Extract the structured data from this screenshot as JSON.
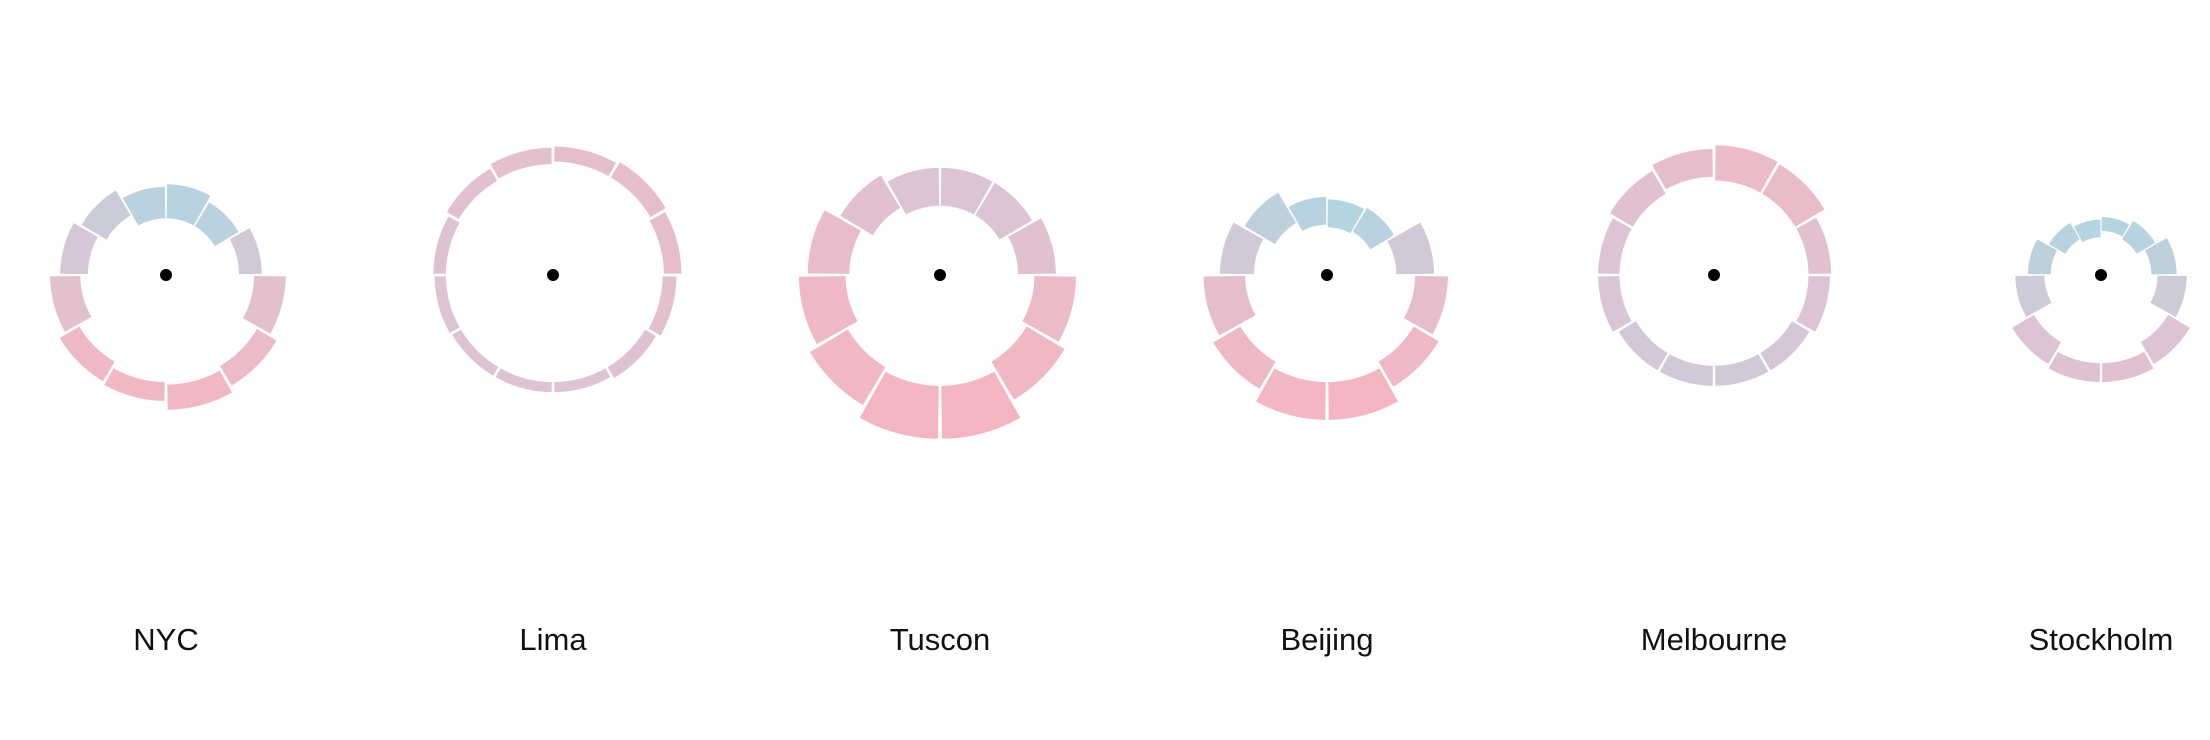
{
  "chart_data": {
    "type": "radial-bar",
    "title": "",
    "description_note": "",
    "colors": {
      "cold": "#b4d4e0",
      "mid": "#d9c6d6",
      "warm": "#f3b6c0",
      "center_dot": "#000000"
    },
    "cities": [
      {
        "name": "NYC",
        "segments": [
          {
            "inner": 0.45,
            "outer": 0.72,
            "warmth": 0.05
          },
          {
            "inner": 0.45,
            "outer": 0.67,
            "warmth": 0.1
          },
          {
            "inner": 0.58,
            "outer": 0.76,
            "warmth": 0.4
          },
          {
            "inner": 0.7,
            "outer": 0.95,
            "warmth": 0.7
          },
          {
            "inner": 0.84,
            "outer": 1.02,
            "warmth": 0.85
          },
          {
            "inner": 0.87,
            "outer": 1.07,
            "warmth": 0.95
          },
          {
            "inner": 0.85,
            "outer": 1.0,
            "warmth": 0.95
          },
          {
            "inner": 0.8,
            "outer": 0.98,
            "warmth": 0.9
          },
          {
            "inner": 0.68,
            "outer": 0.92,
            "warmth": 0.7
          },
          {
            "inner": 0.62,
            "outer": 0.84,
            "warmth": 0.45
          },
          {
            "inner": 0.55,
            "outer": 0.78,
            "warmth": 0.3
          },
          {
            "inner": 0.45,
            "outer": 0.7,
            "warmth": 0.1
          }
        ]
      },
      {
        "name": "Lima",
        "segments": [
          {
            "inner": 0.9,
            "outer": 1.02,
            "warmth": 0.75
          },
          {
            "inner": 0.9,
            "outer": 1.04,
            "warmth": 0.78
          },
          {
            "inner": 0.88,
            "outer": 1.02,
            "warmth": 0.75
          },
          {
            "inner": 0.87,
            "outer": 0.98,
            "warmth": 0.68
          },
          {
            "inner": 0.85,
            "outer": 0.95,
            "warmth": 0.62
          },
          {
            "inner": 0.85,
            "outer": 0.93,
            "warmth": 0.6
          },
          {
            "inner": 0.85,
            "outer": 0.93,
            "warmth": 0.6
          },
          {
            "inner": 0.85,
            "outer": 0.93,
            "warmth": 0.6
          },
          {
            "inner": 0.85,
            "outer": 0.94,
            "warmth": 0.6
          },
          {
            "inner": 0.85,
            "outer": 0.95,
            "warmth": 0.62
          },
          {
            "inner": 0.87,
            "outer": 0.98,
            "warmth": 0.66
          },
          {
            "inner": 0.88,
            "outer": 1.01,
            "warmth": 0.72
          }
        ]
      },
      {
        "name": "Tuscon",
        "segments": [
          {
            "inner": 0.55,
            "outer": 0.85,
            "warmth": 0.55
          },
          {
            "inner": 0.55,
            "outer": 0.85,
            "warmth": 0.55
          },
          {
            "inner": 0.62,
            "outer": 0.92,
            "warmth": 0.65
          },
          {
            "inner": 0.75,
            "outer": 1.08,
            "warmth": 0.85
          },
          {
            "inner": 0.8,
            "outer": 1.15,
            "warmth": 0.95
          },
          {
            "inner": 0.88,
            "outer": 1.3,
            "warmth": 1.0
          },
          {
            "inner": 0.88,
            "outer": 1.3,
            "warmth": 1.0
          },
          {
            "inner": 0.85,
            "outer": 1.2,
            "warmth": 0.95
          },
          {
            "inner": 0.75,
            "outer": 1.12,
            "warmth": 0.9
          },
          {
            "inner": 0.72,
            "outer": 1.05,
            "warmth": 0.8
          },
          {
            "inner": 0.62,
            "outer": 0.92,
            "warmth": 0.65
          },
          {
            "inner": 0.55,
            "outer": 0.85,
            "warmth": 0.55
          }
        ]
      },
      {
        "name": "Beijing",
        "segments": [
          {
            "inner": 0.38,
            "outer": 0.6,
            "warmth": 0.0
          },
          {
            "inner": 0.4,
            "outer": 0.62,
            "warmth": 0.05
          },
          {
            "inner": 0.55,
            "outer": 0.85,
            "warmth": 0.4
          },
          {
            "inner": 0.7,
            "outer": 0.96,
            "warmth": 0.75
          },
          {
            "inner": 0.8,
            "outer": 1.03,
            "warmth": 0.9
          },
          {
            "inner": 0.85,
            "outer": 1.15,
            "warmth": 1.0
          },
          {
            "inner": 0.85,
            "outer": 1.15,
            "warmth": 0.98
          },
          {
            "inner": 0.8,
            "outer": 1.05,
            "warmth": 0.92
          },
          {
            "inner": 0.65,
            "outer": 0.98,
            "warmth": 0.75
          },
          {
            "inner": 0.58,
            "outer": 0.85,
            "warmth": 0.4
          },
          {
            "inner": 0.48,
            "outer": 0.76,
            "warmth": 0.15
          },
          {
            "inner": 0.4,
            "outer": 0.62,
            "warmth": 0.05
          }
        ]
      },
      {
        "name": "Melbourne",
        "segments": [
          {
            "inner": 0.75,
            "outer": 1.03,
            "warmth": 0.85
          },
          {
            "inner": 0.75,
            "outer": 1.02,
            "warmth": 0.82
          },
          {
            "inner": 0.75,
            "outer": 0.93,
            "warmth": 0.65
          },
          {
            "inner": 0.75,
            "outer": 0.92,
            "warmth": 0.55
          },
          {
            "inner": 0.72,
            "outer": 0.88,
            "warmth": 0.45
          },
          {
            "inner": 0.72,
            "outer": 0.88,
            "warmth": 0.4
          },
          {
            "inner": 0.72,
            "outer": 0.88,
            "warmth": 0.4
          },
          {
            "inner": 0.72,
            "outer": 0.88,
            "warmth": 0.42
          },
          {
            "inner": 0.75,
            "outer": 0.92,
            "warmth": 0.5
          },
          {
            "inner": 0.75,
            "outer": 0.92,
            "warmth": 0.55
          },
          {
            "inner": 0.75,
            "outer": 0.96,
            "warmth": 0.65
          },
          {
            "inner": 0.78,
            "outer": 1.0,
            "warmth": 0.75
          }
        ]
      },
      {
        "name": "Stockholm",
        "segments": [
          {
            "inner": 0.35,
            "outer": 0.46,
            "warmth": 0.0
          },
          {
            "inner": 0.33,
            "outer": 0.5,
            "warmth": 0.05
          },
          {
            "inner": 0.4,
            "outer": 0.6,
            "warmth": 0.15
          },
          {
            "inner": 0.45,
            "outer": 0.68,
            "warmth": 0.35
          },
          {
            "inner": 0.62,
            "outer": 0.82,
            "warmth": 0.55
          },
          {
            "inner": 0.7,
            "outer": 0.85,
            "warmth": 0.65
          },
          {
            "inner": 0.7,
            "outer": 0.85,
            "warmth": 0.62
          },
          {
            "inner": 0.62,
            "outer": 0.82,
            "warmth": 0.55
          },
          {
            "inner": 0.45,
            "outer": 0.68,
            "warmth": 0.35
          },
          {
            "inner": 0.4,
            "outer": 0.58,
            "warmth": 0.15
          },
          {
            "inner": 0.33,
            "outer": 0.48,
            "warmth": 0.05
          },
          {
            "inner": 0.3,
            "outer": 0.44,
            "warmth": 0.0
          }
        ]
      }
    ]
  }
}
